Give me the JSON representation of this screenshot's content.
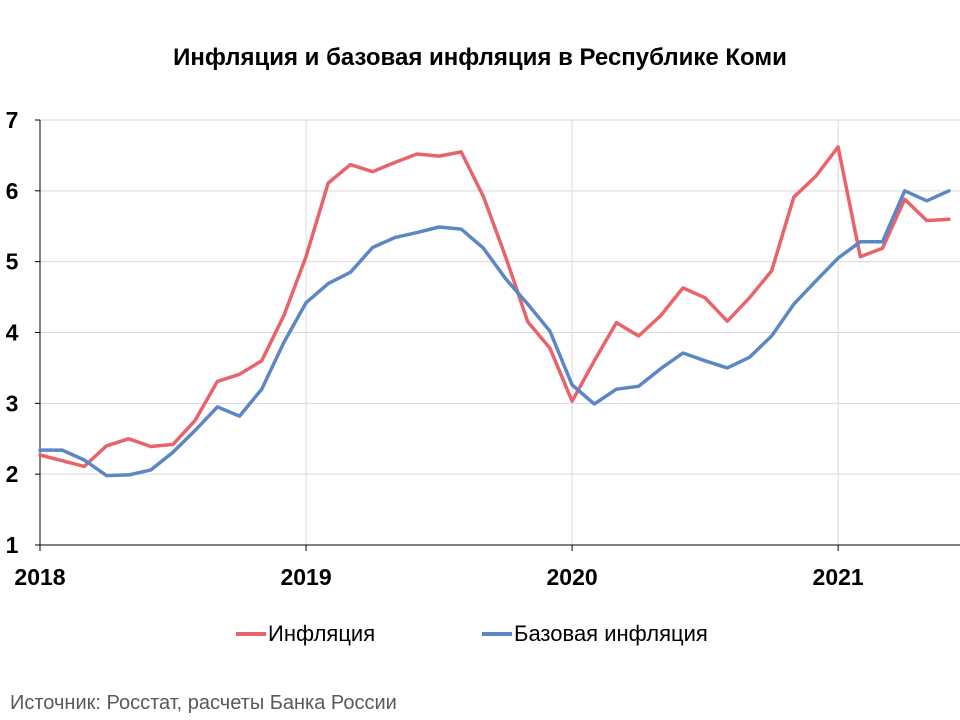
{
  "colors": {
    "inflation": "#E8646A",
    "core": "#5B87C5",
    "grid": "#D9D9D9",
    "axis": "#000000"
  },
  "chart_data": {
    "type": "line",
    "title": "Инфляция и базовая инфляция в Республике Коми",
    "x": [
      0,
      1,
      2,
      3,
      4,
      5,
      6,
      7,
      8,
      9,
      10,
      11,
      12,
      13,
      14,
      15,
      16,
      17,
      18,
      19,
      20,
      21,
      22,
      23,
      24,
      25,
      26,
      27,
      28,
      29,
      30,
      31,
      32,
      33,
      34,
      35,
      36,
      37,
      38,
      39,
      40,
      41
    ],
    "x_tick_labels": [
      {
        "at": 0,
        "label": "2018"
      },
      {
        "at": 12,
        "label": "2019"
      },
      {
        "at": 24,
        "label": "2020"
      },
      {
        "at": 36,
        "label": "2021"
      }
    ],
    "xlim": [
      0,
      41
    ],
    "ylim": [
      1,
      7
    ],
    "y_ticks": [
      1,
      2,
      3,
      4,
      5,
      6,
      7
    ],
    "grid": true,
    "legend_position": "bottom",
    "series": [
      {
        "name": "Инфляция",
        "color": "#E8646A",
        "values": [
          2.27,
          2.19,
          2.11,
          2.4,
          2.5,
          2.39,
          2.42,
          2.76,
          3.31,
          3.41,
          3.6,
          4.24,
          5.07,
          6.11,
          6.37,
          6.27,
          6.4,
          6.52,
          6.49,
          6.55,
          5.92,
          5.07,
          4.15,
          3.78,
          3.03,
          3.6,
          4.14,
          3.95,
          4.24,
          4.63,
          4.49,
          4.16,
          4.49,
          4.87,
          5.91,
          6.21,
          6.62,
          5.07,
          5.19,
          5.88,
          5.58,
          5.6
        ]
      },
      {
        "name": "Базовая инфляция",
        "color": "#5B87C5",
        "values": [
          2.34,
          2.34,
          2.2,
          1.98,
          1.99,
          2.06,
          2.31,
          2.62,
          2.95,
          2.82,
          3.2,
          3.86,
          4.42,
          4.69,
          4.85,
          5.2,
          5.34,
          5.41,
          5.49,
          5.46,
          5.19,
          4.76,
          4.4,
          4.02,
          3.26,
          2.99,
          3.2,
          3.24,
          3.49,
          3.71,
          3.6,
          3.5,
          3.65,
          3.95,
          4.4,
          4.73,
          5.05,
          5.28,
          5.28,
          6.0,
          5.86,
          6.0
        ]
      }
    ]
  },
  "legend": {
    "inflation_label": "Инфляция",
    "core_label": "Базовая инфляция"
  },
  "source": "Источник: Росстат, расчеты Банка России"
}
